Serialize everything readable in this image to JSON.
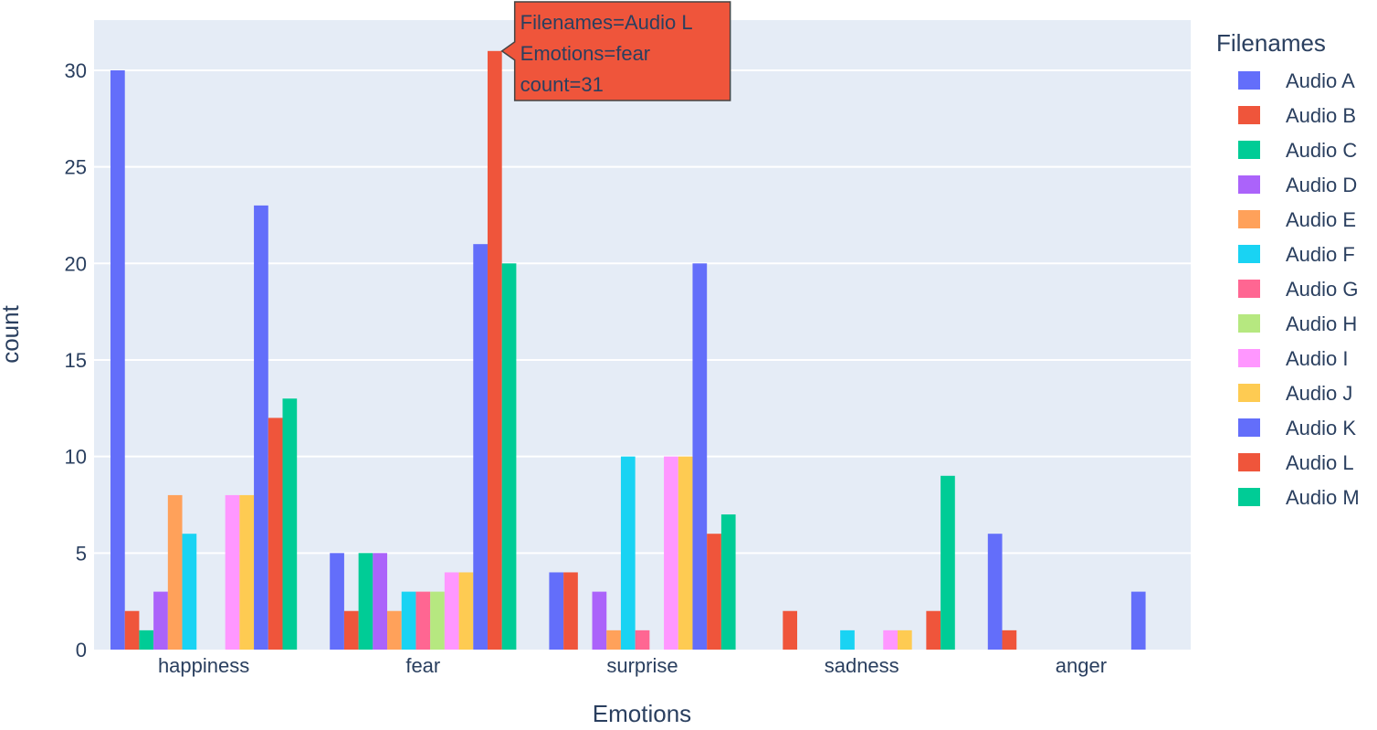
{
  "chart_data": {
    "type": "bar",
    "barmode": "group",
    "xlabel": "Emotions",
    "ylabel": "count",
    "ylim": [
      0,
      32.6
    ],
    "yticks": [
      0,
      5,
      10,
      15,
      20,
      25,
      30
    ],
    "grid": true,
    "legend_title": "Filenames",
    "legend_placement": "right",
    "categories": [
      "happiness",
      "fear",
      "surprise",
      "sadness",
      "anger"
    ],
    "series": [
      {
        "name": "Audio A",
        "color": "#636efa",
        "values": [
          30,
          5,
          4,
          0,
          6
        ]
      },
      {
        "name": "Audio B",
        "color": "#EF553B",
        "values": [
          2,
          2,
          4,
          2,
          1
        ]
      },
      {
        "name": "Audio C",
        "color": "#00cc96",
        "values": [
          1,
          5,
          0,
          0,
          0
        ]
      },
      {
        "name": "Audio D",
        "color": "#ab63fa",
        "values": [
          3,
          5,
          3,
          0,
          0
        ]
      },
      {
        "name": "Audio E",
        "color": "#FFA15A",
        "values": [
          8,
          2,
          1,
          0,
          0
        ]
      },
      {
        "name": "Audio F",
        "color": "#19d3f3",
        "values": [
          6,
          3,
          10,
          1,
          0
        ]
      },
      {
        "name": "Audio G",
        "color": "#FF6692",
        "values": [
          0,
          3,
          1,
          0,
          0
        ]
      },
      {
        "name": "Audio H",
        "color": "#B6E880",
        "values": [
          0,
          3,
          0,
          0,
          0
        ]
      },
      {
        "name": "Audio I",
        "color": "#FF97FF",
        "values": [
          8,
          4,
          10,
          1,
          0
        ]
      },
      {
        "name": "Audio J",
        "color": "#FECB52",
        "values": [
          8,
          4,
          10,
          1,
          0
        ]
      },
      {
        "name": "Audio K",
        "color": "#636efa",
        "values": [
          23,
          21,
          20,
          0,
          3
        ]
      },
      {
        "name": "Audio L",
        "color": "#EF553B",
        "values": [
          12,
          31,
          6,
          2,
          0
        ]
      },
      {
        "name": "Audio M",
        "color": "#00cc96",
        "values": [
          13,
          20,
          7,
          9,
          0
        ]
      }
    ],
    "hover": {
      "series_index": 11,
      "category_index": 1,
      "lines": [
        "Filenames=Audio L",
        "Emotions=fear",
        "count=31"
      ]
    }
  }
}
